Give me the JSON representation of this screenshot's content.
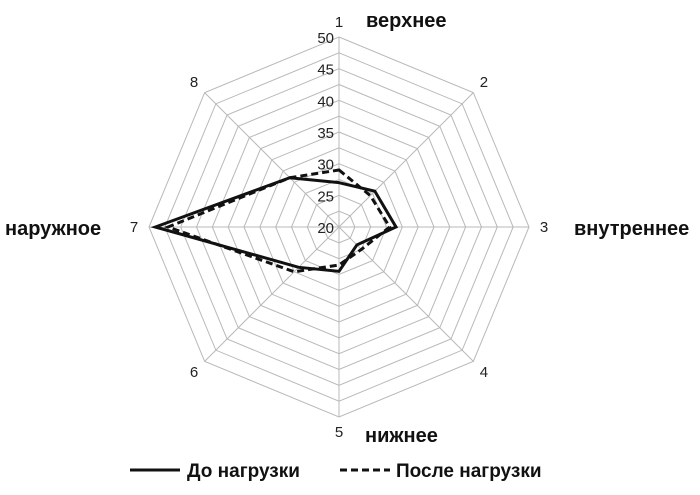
{
  "chart_data": {
    "type": "radar",
    "axes": [
      "1",
      "2",
      "3",
      "4",
      "5",
      "6",
      "7",
      "8"
    ],
    "direction_labels": {
      "top": "верхнее",
      "right": "внутреннее",
      "bottom": "нижнее",
      "left": "наружное"
    },
    "rlim": [
      20,
      50
    ],
    "ticks": [
      "20",
      "25",
      "30",
      "35",
      "40",
      "45",
      "50"
    ],
    "grid": true,
    "legend_position": "bottom",
    "series": [
      {
        "name": "До нагрузки",
        "style": "solid",
        "color": "#111111",
        "values": [
          27,
          28,
          29,
          24,
          27,
          29,
          49,
          31
        ]
      },
      {
        "name": "После нагрузки",
        "style": "dashed",
        "color": "#111111",
        "values": [
          29,
          27,
          28,
          25,
          26,
          30,
          47,
          31
        ]
      }
    ]
  }
}
